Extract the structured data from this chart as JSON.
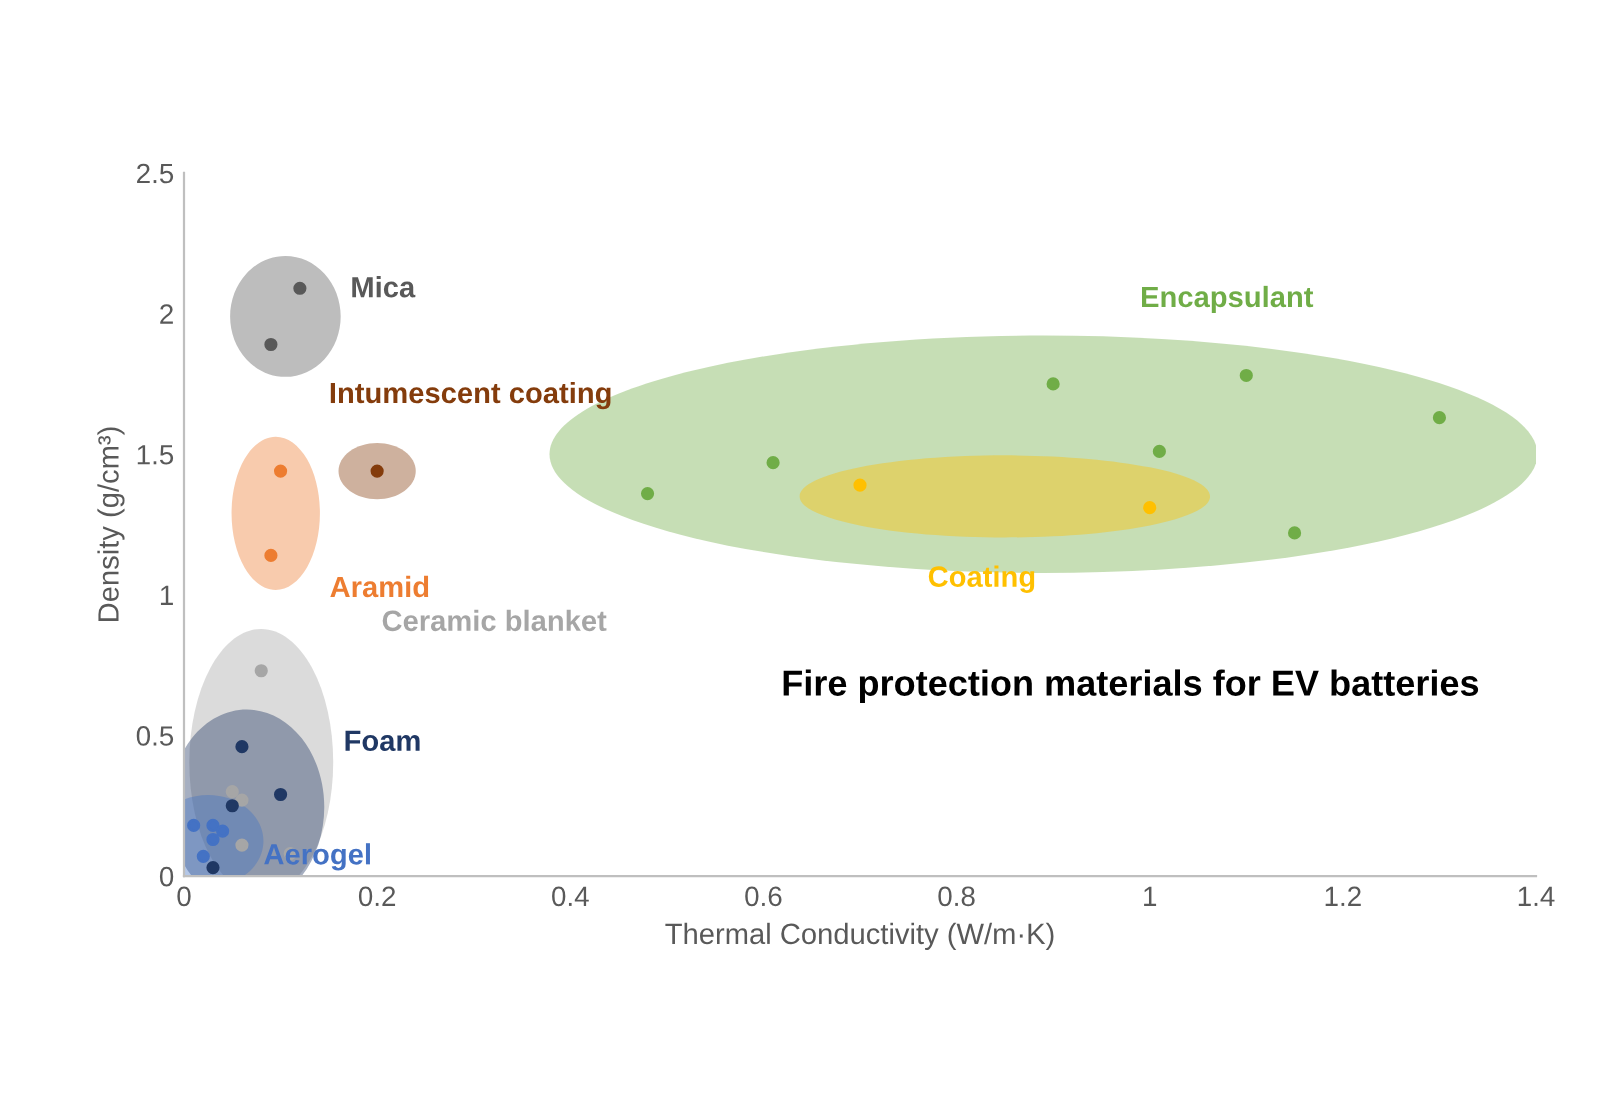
{
  "chart_data": {
    "type": "scatter",
    "xlabel": "Thermal Conductivity (W/m·K)",
    "ylabel": "Density (g/cm³)",
    "xlim": [
      0,
      1.4
    ],
    "xticks": [
      0,
      0.2,
      0.4,
      0.6,
      0.8,
      1,
      1.2,
      1.4
    ],
    "ylim": [
      0,
      2.5
    ],
    "yticks": [
      0,
      0.5,
      1,
      1.5,
      2,
      2.5
    ],
    "grid": false,
    "marker": "circle",
    "annotations": [
      "Fire protection materials for EV batteries"
    ],
    "series": [
      {
        "name": "Mica",
        "color": "#595959",
        "x": [
          0.12,
          0.09
        ],
        "values": [
          2.09,
          1.89
        ]
      },
      {
        "name": "Intumescent coating",
        "color": "#843c0c",
        "x": [
          0.2
        ],
        "values": [
          1.44
        ]
      },
      {
        "name": "Aramid",
        "color": "#ed7d31",
        "x": [
          0.1,
          0.09
        ],
        "values": [
          1.44,
          1.14
        ]
      },
      {
        "name": "Encapsulant",
        "color": "#70ad47",
        "x": [
          0.48,
          0.61,
          0.9,
          1.01,
          1.1,
          1.3,
          1.15
        ],
        "values": [
          1.36,
          1.47,
          1.75,
          1.51,
          1.78,
          1.63,
          1.22
        ]
      },
      {
        "name": "Coating",
        "color": "#ffc000",
        "x": [
          0.7,
          1.0
        ],
        "values": [
          1.39,
          1.31
        ]
      },
      {
        "name": "Ceramic blanket",
        "color": "#a6a6a6",
        "x": [
          0.08,
          0.05,
          0.06,
          0.06,
          0.11
        ],
        "values": [
          0.73,
          0.3,
          0.27,
          0.11,
          0.08
        ]
      },
      {
        "name": "Foam",
        "color": "#203864",
        "x": [
          0.06,
          0.1,
          0.05,
          0.03
        ],
        "values": [
          0.46,
          0.29,
          0.25,
          0.03
        ]
      },
      {
        "name": "Aerogel",
        "color": "#4472c4",
        "x": [
          0.01,
          0.03,
          0.04,
          0.03,
          0.02
        ],
        "values": [
          0.18,
          0.18,
          0.16,
          0.13,
          0.07
        ]
      }
    ]
  }
}
